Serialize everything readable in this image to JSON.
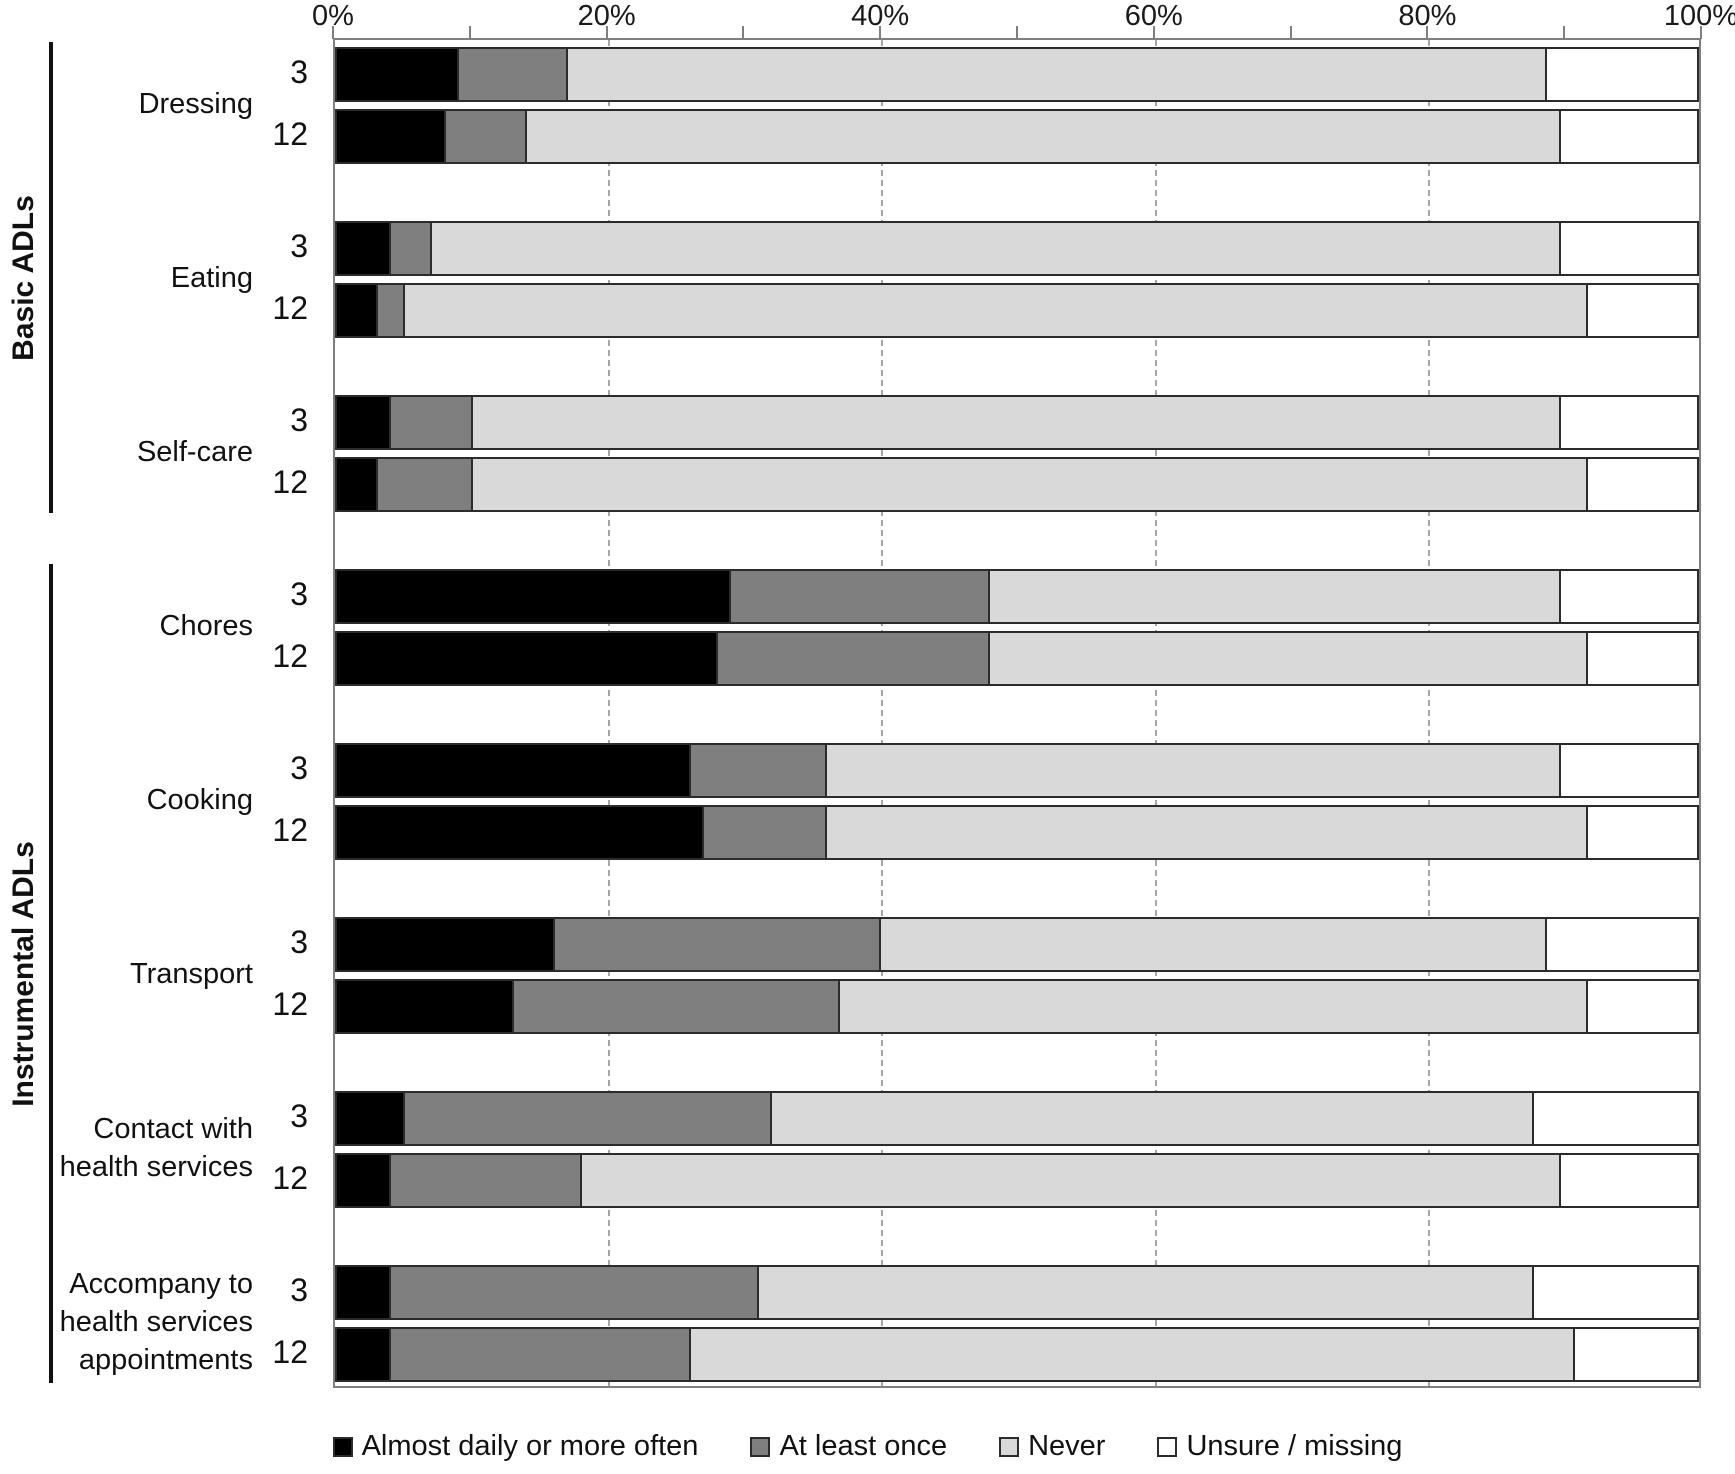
{
  "axis": {
    "ticks": [
      {
        "label": "0%",
        "percent": 0
      },
      {
        "label": "20%",
        "percent": 20
      },
      {
        "label": "40%",
        "percent": 40
      },
      {
        "label": "60%",
        "percent": 60
      },
      {
        "label": "80%",
        "percent": 80
      },
      {
        "label": "100%",
        "percent": 100
      }
    ],
    "tick_mark_percents": [
      0,
      10,
      20,
      30,
      40,
      50,
      60,
      70,
      80,
      90,
      100
    ],
    "gridline_percents": [
      20,
      40,
      60,
      80
    ]
  },
  "sections": [
    {
      "label": "Basic ADLs",
      "from": 0,
      "to": 2
    },
    {
      "label": "Instrumental ADLs",
      "from": 3,
      "to": 7
    }
  ],
  "legend": [
    {
      "label": "Almost daily or more often",
      "color": "#000000"
    },
    {
      "label": "At least once",
      "color": "#7f7f7f"
    },
    {
      "label": "Never",
      "color": "#d9d9d9"
    },
    {
      "label": "Unsure / missing",
      "color": "#ffffff"
    }
  ],
  "chart_data": {
    "type": "bar",
    "stacked": true,
    "orientation": "horizontal",
    "xlim": [
      0,
      100
    ],
    "grid": "dashed-vertical",
    "legend_position": "bottom",
    "series_names": [
      "Almost daily or more often",
      "At least once",
      "Never",
      "Unsure / missing"
    ],
    "categories": [
      {
        "label_lines": [
          "Dressing"
        ]
      },
      {
        "label_lines": [
          "Eating"
        ]
      },
      {
        "label_lines": [
          "Self-care"
        ]
      },
      {
        "label_lines": [
          "Chores"
        ]
      },
      {
        "label_lines": [
          "Cooking"
        ]
      },
      {
        "label_lines": [
          "Transport"
        ]
      },
      {
        "label_lines": [
          "Contact with",
          "health services"
        ]
      },
      {
        "label_lines": [
          "Accompany to",
          "health services",
          "appointments"
        ]
      }
    ],
    "rows": [
      {
        "category": "Dressing",
        "time": "3",
        "values": [
          9,
          8,
          72,
          11
        ]
      },
      {
        "category": "Dressing",
        "time": "12",
        "values": [
          8,
          6,
          76,
          10
        ]
      },
      {
        "category": "Eating",
        "time": "3",
        "values": [
          4,
          3,
          83,
          10
        ]
      },
      {
        "category": "Eating",
        "time": "12",
        "values": [
          3,
          2,
          87,
          8
        ]
      },
      {
        "category": "Self-care",
        "time": "3",
        "values": [
          4,
          6,
          80,
          10
        ]
      },
      {
        "category": "Self-care",
        "time": "12",
        "values": [
          3,
          7,
          82,
          8
        ]
      },
      {
        "category": "Chores",
        "time": "3",
        "values": [
          29,
          19,
          42,
          10
        ]
      },
      {
        "category": "Chores",
        "time": "12",
        "values": [
          28,
          20,
          44,
          8
        ]
      },
      {
        "category": "Cooking",
        "time": "3",
        "values": [
          26,
          10,
          54,
          10
        ]
      },
      {
        "category": "Cooking",
        "time": "12",
        "values": [
          27,
          9,
          56,
          8
        ]
      },
      {
        "category": "Transport",
        "time": "3",
        "values": [
          16,
          24,
          49,
          11
        ]
      },
      {
        "category": "Transport",
        "time": "12",
        "values": [
          13,
          24,
          55,
          8
        ]
      },
      {
        "category": "Contact with health services",
        "time": "3",
        "values": [
          5,
          27,
          56,
          12
        ]
      },
      {
        "category": "Contact with health services",
        "time": "12",
        "values": [
          4,
          14,
          72,
          10
        ]
      },
      {
        "category": "Accompany to health services appointments",
        "time": "3",
        "values": [
          4,
          27,
          57,
          12
        ]
      },
      {
        "category": "Accompany to health services appointments",
        "time": "12",
        "values": [
          4,
          22,
          65,
          9
        ]
      }
    ]
  }
}
